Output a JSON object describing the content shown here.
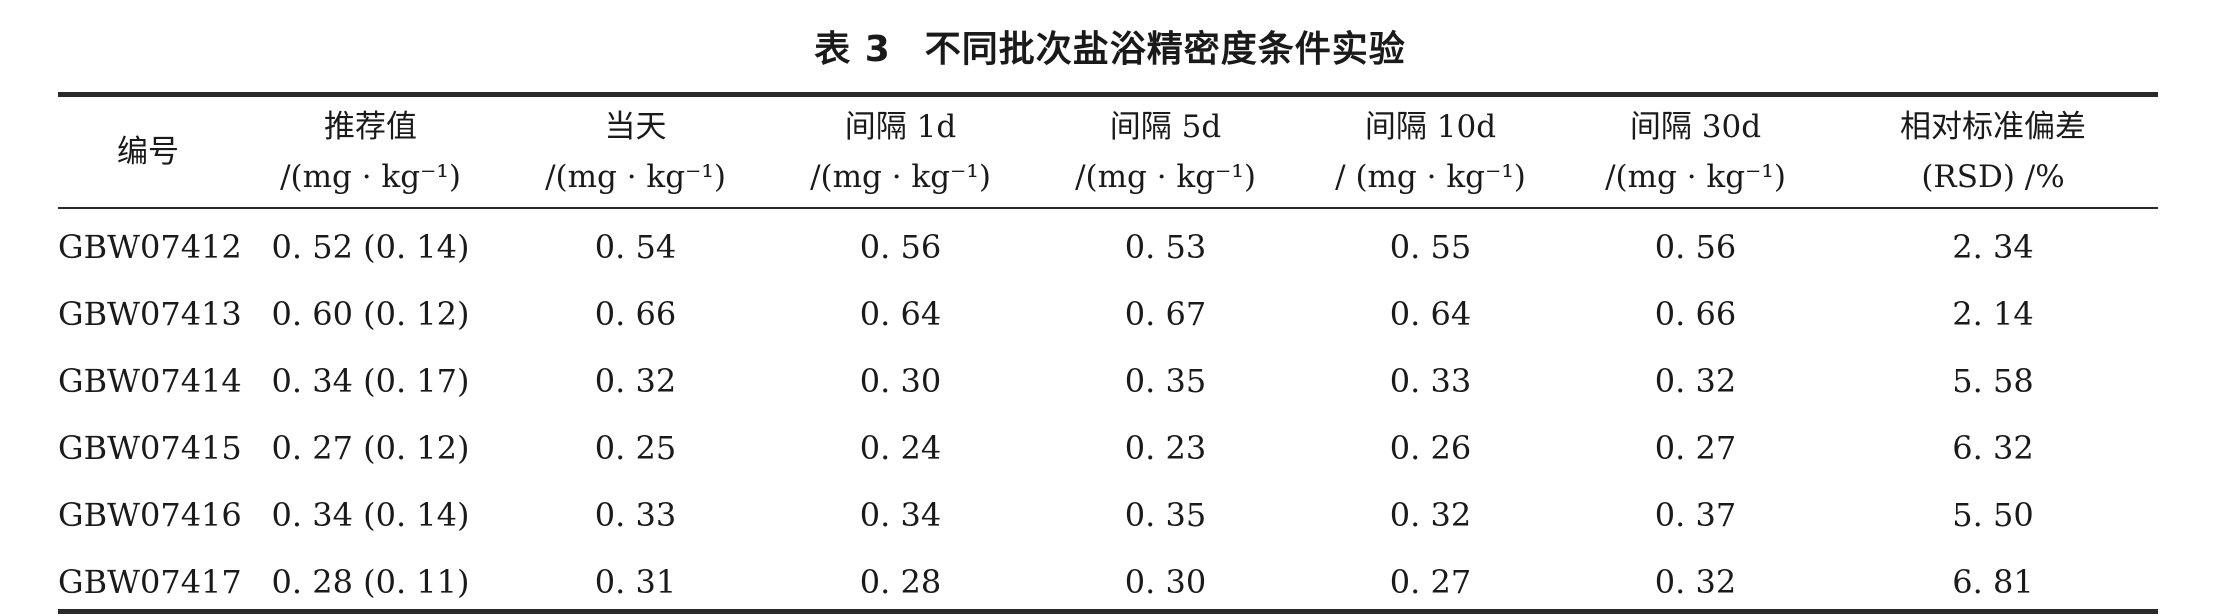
{
  "caption": {
    "label": "表 3",
    "title": "不同批次盐浴精密度条件实验"
  },
  "table": {
    "headers": [
      {
        "line1": "编号",
        "line2": ""
      },
      {
        "line1": "推荐值",
        "line2": "/(mg · kg⁻¹)"
      },
      {
        "line1": "当天",
        "line2": "/(mg · kg⁻¹)"
      },
      {
        "line1": "间隔 1d",
        "line2": "/(mg · kg⁻¹)"
      },
      {
        "line1": "间隔 5d",
        "line2": "/(mg · kg⁻¹)"
      },
      {
        "line1": "间隔 10d",
        "line2": "/ (mg · kg⁻¹)"
      },
      {
        "line1": "间隔 30d",
        "line2": "/(mg · kg⁻¹)"
      },
      {
        "line1": "相对标准偏差",
        "line2": "(RSD) /%"
      }
    ],
    "rows": [
      [
        "GBW07412",
        "0. 52 (0. 14)",
        "0. 54",
        "0. 56",
        "0. 53",
        "0. 55",
        "0. 56",
        "2. 34"
      ],
      [
        "GBW07413",
        "0. 60 (0. 12)",
        "0. 66",
        "0. 64",
        "0. 67",
        "0. 64",
        "0. 66",
        "2. 14"
      ],
      [
        "GBW07414",
        "0. 34 (0. 17)",
        "0. 32",
        "0. 30",
        "0. 35",
        "0. 33",
        "0. 32",
        "5. 58"
      ],
      [
        "GBW07415",
        "0. 27 (0. 12)",
        "0. 25",
        "0. 24",
        "0. 23",
        "0. 26",
        "0. 27",
        "6. 32"
      ],
      [
        "GBW07416",
        "0. 34 (0. 14)",
        "0. 33",
        "0. 34",
        "0. 35",
        "0. 32",
        "0. 37",
        "5. 50"
      ],
      [
        "GBW07417",
        "0. 28 (0. 11)",
        "0. 31",
        "0. 28",
        "0. 30",
        "0. 27",
        "0. 32",
        "6. 81"
      ]
    ]
  }
}
